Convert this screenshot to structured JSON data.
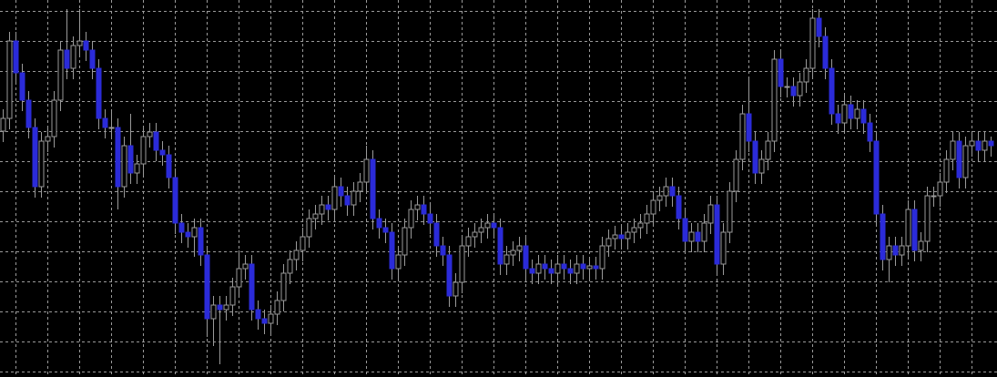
{
  "chart_data": {
    "type": "candlestick",
    "up_color": "#000000",
    "up_stroke": "#9a9a9a",
    "down_color": "#2b2bd9",
    "wick_color": "#9a9a9a",
    "grid": true,
    "grid_color": "#9a9a9a",
    "background": "#000000",
    "ylim": [
      0,
      414
    ],
    "yticks": [
      6,
      39,
      72,
      105,
      138,
      171,
      204,
      237,
      270,
      303,
      336,
      369,
      402
    ],
    "open": [
      270,
      284,
      369,
      334,
      304,
      274,
      209,
      259,
      264,
      304,
      359,
      339,
      364,
      369,
      359,
      339,
      284,
      274,
      274,
      209,
      254,
      224,
      234,
      264,
      269,
      249,
      244,
      219,
      169,
      159,
      154,
      164,
      134,
      64,
      79,
      74,
      79,
      99,
      119,
      124,
      74,
      64,
      59,
      69,
      84,
      114,
      129,
      139,
      154,
      174,
      179,
      189,
      184,
      209,
      199,
      189,
      204,
      214,
      239,
      174,
      164,
      159,
      119,
      134,
      164,
      184,
      189,
      179,
      169,
      144,
      134,
      89,
      104,
      144,
      154,
      159,
      164,
      169,
      164,
      124,
      134,
      139,
      144,
      119,
      114,
      124,
      119,
      114,
      124,
      119,
      114,
      124,
      119,
      122,
      119,
      144,
      152,
      156,
      152,
      159,
      164,
      169,
      179,
      194,
      199,
      209,
      199,
      174,
      149,
      159,
      149,
      169,
      189,
      124,
      159,
      204,
      239,
      289,
      259,
      224,
      239,
      259,
      349,
      319,
      319,
      309,
      324,
      339,
      394,
      374,
      339,
      289,
      279,
      299,
      284,
      294,
      279,
      259,
      179,
      129,
      144,
      134,
      144,
      184,
      139,
      149,
      199,
      199,
      214,
      239,
      259,
      219,
      254,
      259,
      249,
      259
    ],
    "high": [
      294,
      379,
      379,
      344,
      314,
      284,
      269,
      274,
      314,
      369,
      404,
      374,
      404,
      379,
      369,
      349,
      294,
      294,
      284,
      264,
      289,
      244,
      274,
      279,
      279,
      259,
      254,
      229,
      179,
      169,
      174,
      174,
      144,
      89,
      89,
      89,
      109,
      139,
      134,
      134,
      84,
      74,
      79,
      94,
      124,
      139,
      149,
      164,
      184,
      189,
      199,
      199,
      219,
      219,
      209,
      214,
      224,
      254,
      249,
      184,
      174,
      169,
      144,
      174,
      194,
      199,
      199,
      189,
      179,
      154,
      144,
      114,
      154,
      164,
      169,
      174,
      179,
      179,
      174,
      144,
      149,
      154,
      154,
      129,
      134,
      134,
      129,
      134,
      134,
      129,
      134,
      134,
      132,
      132,
      154,
      162,
      166,
      166,
      169,
      174,
      179,
      189,
      204,
      209,
      219,
      219,
      209,
      184,
      169,
      169,
      179,
      199,
      199,
      169,
      214,
      249,
      299,
      329,
      269,
      249,
      269,
      359,
      359,
      329,
      329,
      334,
      349,
      404,
      404,
      384,
      349,
      299,
      309,
      309,
      304,
      304,
      289,
      269,
      189,
      154,
      154,
      154,
      194,
      194,
      159,
      209,
      209,
      224,
      249,
      269,
      269,
      264,
      269,
      269,
      269,
      264
    ],
    "low": [
      258,
      272,
      322,
      292,
      262,
      197,
      197,
      247,
      252,
      292,
      327,
      327,
      352,
      347,
      327,
      272,
      262,
      262,
      184,
      197,
      212,
      212,
      222,
      252,
      237,
      232,
      207,
      157,
      147,
      142,
      132,
      122,
      44,
      34,
      14,
      62,
      67,
      87,
      107,
      62,
      52,
      47,
      47,
      57,
      72,
      102,
      117,
      127,
      142,
      162,
      167,
      172,
      172,
      187,
      177,
      177,
      192,
      202,
      162,
      152,
      147,
      107,
      107,
      122,
      152,
      172,
      167,
      157,
      132,
      122,
      77,
      77,
      92,
      132,
      142,
      147,
      152,
      152,
      112,
      112,
      122,
      127,
      107,
      102,
      102,
      107,
      102,
      102,
      107,
      102,
      102,
      107,
      107,
      107,
      107,
      132,
      140,
      140,
      140,
      147,
      152,
      157,
      167,
      182,
      187,
      187,
      162,
      137,
      137,
      137,
      137,
      157,
      112,
      112,
      147,
      192,
      227,
      247,
      212,
      212,
      227,
      247,
      307,
      307,
      297,
      297,
      312,
      327,
      362,
      327,
      277,
      267,
      267,
      272,
      272,
      267,
      247,
      167,
      117,
      104,
      122,
      122,
      132,
      127,
      127,
      137,
      187,
      187,
      202,
      227,
      207,
      207,
      242,
      237,
      237,
      242
    ],
    "close": [
      284,
      369,
      334,
      304,
      274,
      209,
      259,
      264,
      304,
      359,
      339,
      364,
      369,
      359,
      339,
      284,
      274,
      274,
      209,
      254,
      224,
      234,
      264,
      269,
      249,
      244,
      219,
      169,
      159,
      154,
      164,
      134,
      64,
      79,
      74,
      79,
      99,
      119,
      124,
      74,
      64,
      59,
      69,
      84,
      114,
      129,
      139,
      154,
      174,
      179,
      189,
      184,
      209,
      199,
      189,
      204,
      214,
      239,
      174,
      164,
      159,
      119,
      134,
      164,
      184,
      189,
      179,
      169,
      144,
      134,
      89,
      104,
      144,
      154,
      159,
      164,
      169,
      164,
      124,
      134,
      139,
      144,
      119,
      114,
      124,
      119,
      114,
      124,
      119,
      114,
      124,
      119,
      122,
      119,
      144,
      152,
      156,
      152,
      159,
      164,
      169,
      179,
      194,
      199,
      209,
      199,
      174,
      149,
      159,
      149,
      169,
      189,
      124,
      159,
      204,
      239,
      289,
      259,
      224,
      239,
      259,
      349,
      319,
      319,
      309,
      324,
      339,
      394,
      374,
      339,
      289,
      279,
      299,
      284,
      294,
      279,
      259,
      179,
      129,
      144,
      134,
      144,
      184,
      139,
      149,
      199,
      199,
      214,
      239,
      259,
      219,
      254,
      259,
      249,
      259,
      254
    ]
  }
}
